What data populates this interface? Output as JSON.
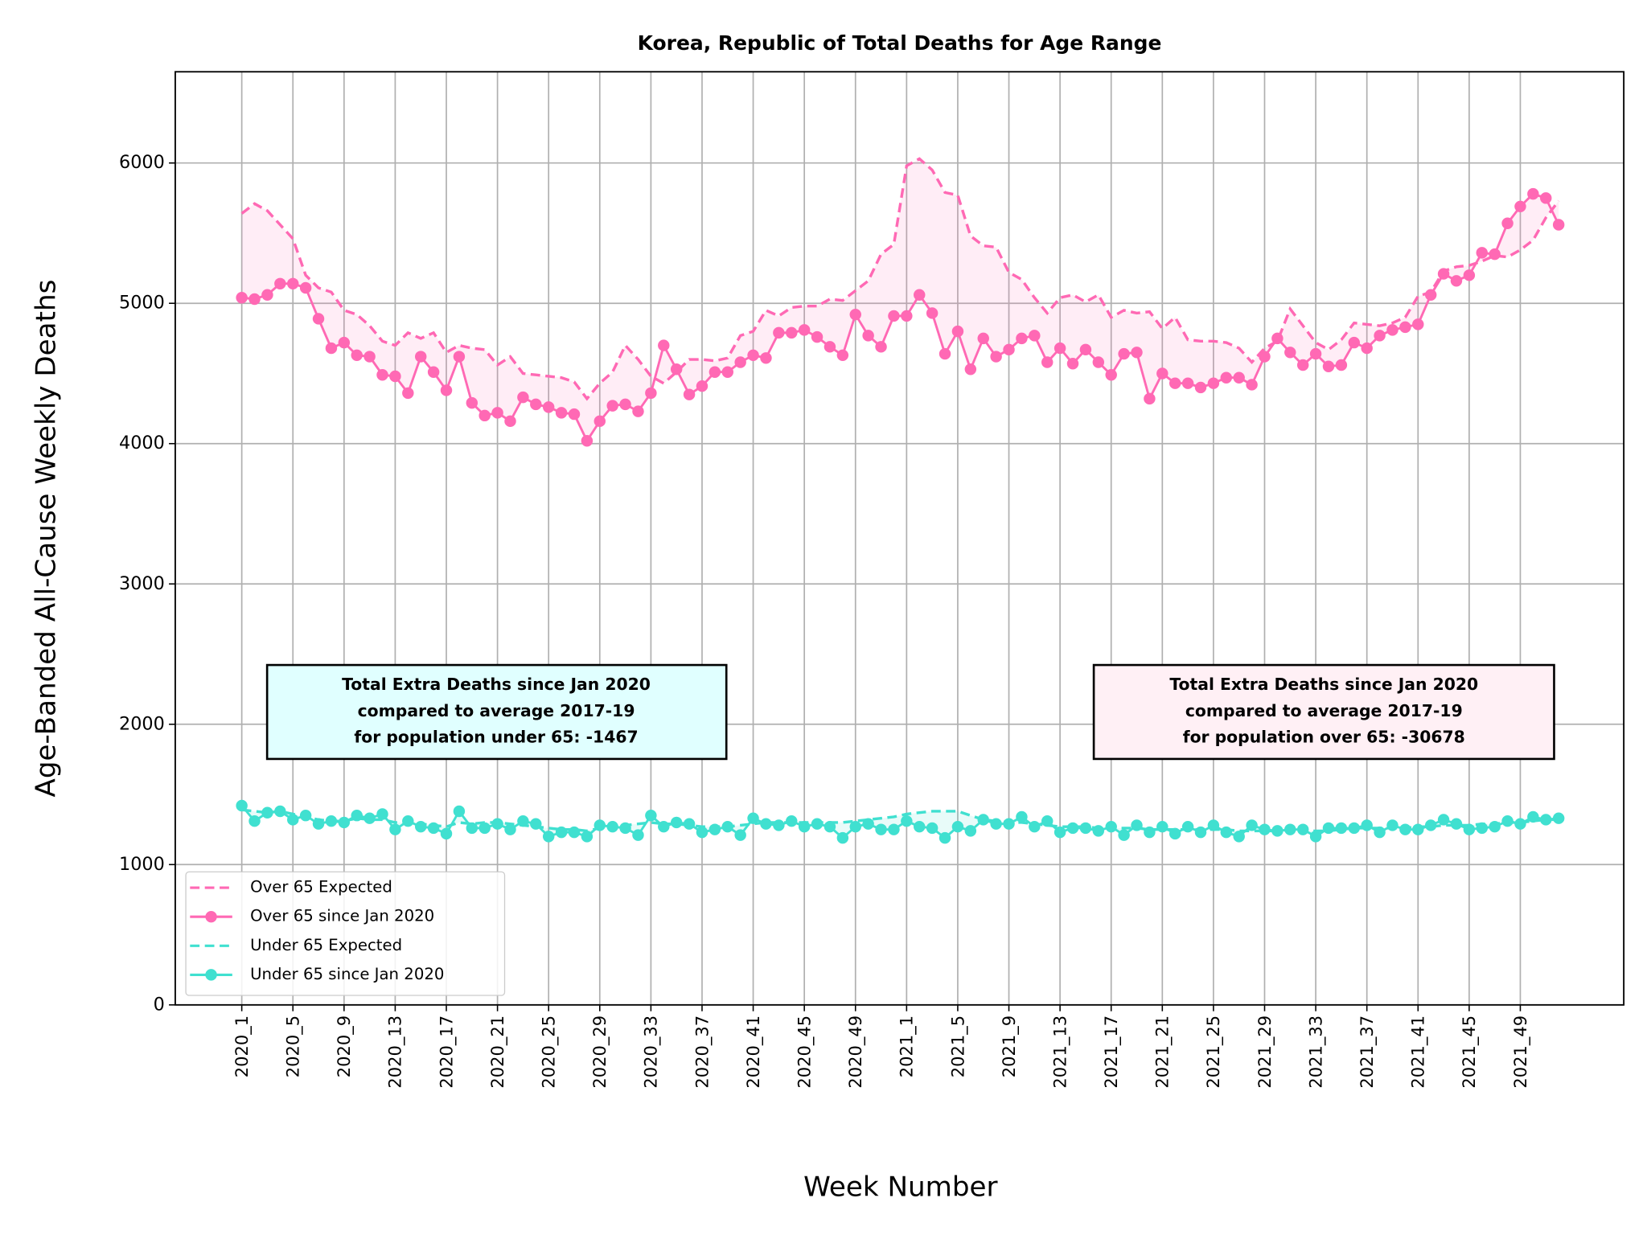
{
  "chart_data": {
    "type": "line",
    "title": "Korea, Republic of Total Deaths for Age Range",
    "x_label": "Week Number",
    "y_label": "Age-Banded All-Cause Weekly Deaths",
    "categories": [
      "2020_1",
      null,
      null,
      null,
      "2020_5",
      null,
      null,
      null,
      "2020_9",
      null,
      null,
      null,
      "2020_13",
      null,
      null,
      null,
      "2020_17",
      null,
      null,
      null,
      "2020_21",
      null,
      null,
      null,
      "2020_25",
      null,
      null,
      null,
      "2020_29",
      null,
      null,
      null,
      "2020_33",
      null,
      null,
      null,
      "2020_37",
      null,
      null,
      null,
      "2020_41",
      null,
      null,
      null,
      "2020_45",
      null,
      null,
      null,
      "2020_49",
      null,
      null,
      null,
      "2021_1",
      null,
      null,
      null,
      "2021_5",
      null,
      null,
      null,
      "2021_9",
      null,
      null,
      null,
      "2021_13",
      null,
      null,
      null,
      "2021_17",
      null,
      null,
      null,
      "2021_21",
      null,
      null,
      null,
      "2021_25",
      null,
      null,
      null,
      "2021_29",
      null,
      null,
      null,
      "2021_33",
      null,
      null,
      null,
      "2021_37",
      null,
      null,
      null,
      "2021_41",
      null,
      null,
      null,
      "2021_45",
      null,
      null,
      null,
      "2021_49",
      null,
      null,
      null
    ],
    "ylim": [
      0,
      6650
    ],
    "yticks": [
      0,
      1000,
      2000,
      3000,
      4000,
      5000,
      6000
    ],
    "grid": true,
    "legend": "lower left",
    "series": [
      {
        "name": "Over 65 Expected",
        "color": "#ff69b4",
        "style": "dashed",
        "fill_with": 1,
        "values": [
          5640,
          5710,
          5660,
          5560,
          5460,
          5200,
          5110,
          5080,
          4950,
          4920,
          4840,
          4730,
          4700,
          4790,
          4750,
          4790,
          4650,
          4700,
          4680,
          4670,
          4560,
          4620,
          4500,
          4490,
          4480,
          4470,
          4440,
          4320,
          4430,
          4510,
          4700,
          4600,
          4480,
          4430,
          4510,
          4600,
          4600,
          4590,
          4610,
          4770,
          4800,
          4950,
          4910,
          4970,
          4980,
          4980,
          5030,
          5020,
          5090,
          5160,
          5350,
          5420,
          5980,
          6030,
          5950,
          5790,
          5770,
          5480,
          5410,
          5400,
          5220,
          5170,
          5040,
          4930,
          5040,
          5060,
          5010,
          5060,
          4900,
          4950,
          4930,
          4940,
          4820,
          4900,
          4740,
          4730,
          4730,
          4720,
          4680,
          4580,
          4680,
          4730,
          4960,
          4840,
          4720,
          4670,
          4740,
          4860,
          4850,
          4840,
          4860,
          4900,
          5050,
          5080,
          5230,
          5260,
          5270,
          5300,
          5340,
          5330,
          5380,
          5450,
          5610,
          5730
        ]
      },
      {
        "name": "Over 65 since Jan 2020",
        "color": "#ff69b4",
        "style": "markers",
        "values": [
          5040,
          5030,
          5060,
          5140,
          5140,
          5110,
          4890,
          4680,
          4720,
          4630,
          4620,
          4490,
          4480,
          4360,
          4620,
          4510,
          4380,
          4620,
          4290,
          4200,
          4220,
          4160,
          4330,
          4280,
          4260,
          4220,
          4210,
          4020,
          4160,
          4270,
          4280,
          4230,
          4360,
          4700,
          4530,
          4350,
          4410,
          4510,
          4510,
          4580,
          4630,
          4610,
          4790,
          4790,
          4810,
          4760,
          4690,
          4630,
          4920,
          4770,
          4690,
          4910,
          4910,
          5060,
          4930,
          4640,
          4800,
          4530,
          4750,
          4620,
          4670,
          4750,
          4770,
          4580,
          4680,
          4570,
          4670,
          4580,
          4490,
          4640,
          4650,
          4320,
          4500,
          4430,
          4430,
          4400,
          4430,
          4470,
          4470,
          4420,
          4620,
          4750,
          4650,
          4560,
          4640,
          4550,
          4560,
          4720,
          4680,
          4770,
          4810,
          4830,
          4850,
          5060,
          5210,
          5160,
          5200,
          5360,
          5350,
          5570,
          5690,
          5780,
          5750,
          5560
        ]
      },
      {
        "name": "Under 65 Expected",
        "color": "#40e0d0",
        "style": "dashed",
        "fill_with": 3,
        "values": [
          1390,
          1380,
          1370,
          1380,
          1360,
          1340,
          1320,
          1310,
          1310,
          1330,
          1320,
          1320,
          1300,
          1300,
          1290,
          1280,
          1270,
          1300,
          1290,
          1300,
          1300,
          1290,
          1280,
          1270,
          1260,
          1250,
          1250,
          1240,
          1260,
          1270,
          1280,
          1290,
          1300,
          1290,
          1290,
          1280,
          1270,
          1270,
          1270,
          1280,
          1290,
          1300,
          1300,
          1300,
          1300,
          1300,
          1300,
          1300,
          1310,
          1320,
          1330,
          1340,
          1360,
          1370,
          1380,
          1380,
          1380,
          1350,
          1320,
          1310,
          1300,
          1300,
          1290,
          1280,
          1270,
          1270,
          1270,
          1260,
          1260,
          1260,
          1260,
          1250,
          1250,
          1250,
          1250,
          1250,
          1250,
          1250,
          1240,
          1240,
          1240,
          1240,
          1250,
          1240,
          1240,
          1240,
          1250,
          1260,
          1260,
          1260,
          1260,
          1260,
          1270,
          1270,
          1280,
          1280,
          1280,
          1290,
          1290,
          1300,
          1300,
          1310,
          1320,
          1320
        ]
      },
      {
        "name": "Under 65 since Jan 2020",
        "color": "#40e0d0",
        "style": "markers",
        "values": [
          1420,
          1310,
          1370,
          1380,
          1320,
          1350,
          1290,
          1310,
          1300,
          1350,
          1330,
          1360,
          1250,
          1310,
          1270,
          1260,
          1220,
          1380,
          1260,
          1260,
          1290,
          1250,
          1310,
          1290,
          1200,
          1230,
          1230,
          1200,
          1280,
          1270,
          1260,
          1210,
          1350,
          1270,
          1300,
          1290,
          1230,
          1250,
          1270,
          1210,
          1330,
          1290,
          1280,
          1310,
          1270,
          1290,
          1270,
          1190,
          1270,
          1290,
          1250,
          1250,
          1310,
          1270,
          1260,
          1190,
          1270,
          1240,
          1320,
          1290,
          1290,
          1340,
          1270,
          1310,
          1230,
          1260,
          1260,
          1240,
          1270,
          1210,
          1280,
          1230,
          1270,
          1220,
          1270,
          1230,
          1280,
          1230,
          1200,
          1280,
          1250,
          1240,
          1250,
          1250,
          1200,
          1260,
          1260,
          1260,
          1280,
          1230,
          1280,
          1250,
          1250,
          1280,
          1320,
          1290,
          1250,
          1260,
          1270,
          1310,
          1290,
          1340,
          1320,
          1330
        ]
      }
    ],
    "annotations": [
      {
        "lines": [
          "Total Extra Deaths since Jan 2020",
          "compared to average 2017-19",
          "for population under 65: -1467"
        ],
        "facecolor": "#e0ffff"
      },
      {
        "lines": [
          "Total Extra Deaths since Jan 2020",
          "compared to average 2017-19",
          "for population over 65: -30678"
        ],
        "facecolor": "#fff0f5"
      }
    ]
  }
}
